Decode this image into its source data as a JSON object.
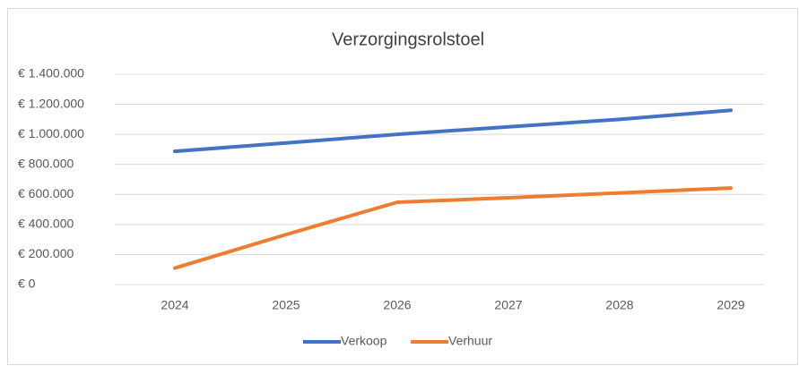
{
  "chart_data": {
    "type": "line",
    "title": "Verzorgingsrolstoel",
    "categories": [
      "2024",
      "2025",
      "2026",
      "2027",
      "2028",
      "2029"
    ],
    "series": [
      {
        "name": "Verkoop",
        "color": "#4472c4",
        "values": [
          887000,
          943000,
          1000000,
          1050000,
          1100000,
          1160000
        ]
      },
      {
        "name": "Verhuur",
        "color": "#ed7d31",
        "values": [
          110000,
          333000,
          548000,
          578000,
          610000,
          643000
        ]
      }
    ],
    "ylim": [
      0,
      1400000
    ],
    "yticks": [
      {
        "value": 0,
        "label": "€ 0"
      },
      {
        "value": 200000,
        "label": "€ 200.000"
      },
      {
        "value": 400000,
        "label": "€ 400.000"
      },
      {
        "value": 600000,
        "label": "€ 600.000"
      },
      {
        "value": 800000,
        "label": "€ 800.000"
      },
      {
        "value": 1000000,
        "label": "€ 1.000.000"
      },
      {
        "value": 1200000,
        "label": "€ 1.200.000"
      },
      {
        "value": 1400000,
        "label": "€ 1.400.000"
      }
    ],
    "grid": true,
    "legend": "bottom"
  }
}
